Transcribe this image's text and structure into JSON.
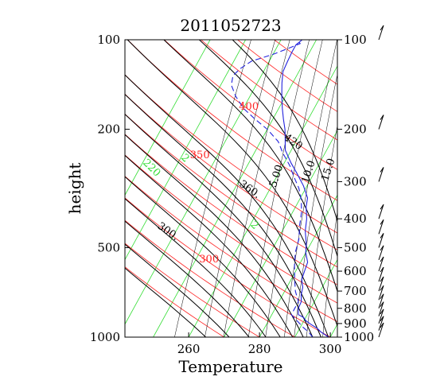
{
  "chart_data": {
    "type": "line",
    "title": "2011052723",
    "xlabel": "Temperature",
    "ylabel": "height",
    "xlim": [
      242,
      302
    ],
    "pressure_range": [
      1000,
      100
    ],
    "x_ticks": [
      260,
      280,
      300
    ],
    "y_ticks": [
      1000,
      500,
      200,
      100
    ],
    "right_ticks": [
      1000,
      900,
      800,
      700,
      600,
      500,
      400,
      300,
      200,
      100
    ],
    "isotherm_temps": [
      220,
      230,
      240,
      250,
      260,
      270,
      280,
      290,
      300,
      310,
      320,
      330,
      340,
      350
    ],
    "isotherm_labels": [
      {
        "text": "220",
        "temp": 220,
        "p": 260
      },
      {
        "text": "2",
        "temp": 230,
        "p": 250
      },
      {
        "text": "2",
        "temp": 260,
        "p": 420
      }
    ],
    "dry_adiabats": [
      270,
      280,
      290,
      300,
      310,
      320,
      330,
      340,
      350,
      360,
      380,
      400,
      420,
      440,
      460
    ],
    "dry_adiabat_labels": [
      {
        "text": "300",
        "theta": 300,
        "p": 560
      },
      {
        "text": "350",
        "theta": 350,
        "p": 250
      },
      {
        "text": "400",
        "theta": 400,
        "p": 172
      }
    ],
    "theta_e_curves": [
      270,
      280,
      290,
      300,
      310,
      320,
      330,
      340,
      350,
      360,
      380,
      400,
      420,
      440
    ],
    "theta_e_labels": [
      {
        "text": "300.",
        "theta_e": 300,
        "p": 450
      },
      {
        "text": "360.",
        "theta_e": 360,
        "p": 325
      },
      {
        "text": "420",
        "theta_e": 420,
        "p": 225
      }
    ],
    "mixing_ratio_lines": [
      1,
      2,
      3,
      5,
      7,
      10,
      12,
      15,
      20
    ],
    "mixing_ratio_labels": [
      {
        "text": "5.00",
        "w": 5,
        "p": 315
      },
      {
        "text": "10.0",
        "w": 10,
        "p": 305
      },
      {
        "text": "15.0",
        "w": 15,
        "p": 300
      }
    ],
    "series": [
      {
        "style": "solid",
        "color": "#2222dd",
        "points": [
          [
            299.5,
            1000
          ],
          [
            296.5,
            960
          ],
          [
            295,
            935
          ],
          [
            292.5,
            905
          ],
          [
            290.5,
            880
          ],
          [
            289.5,
            860
          ],
          [
            287.5,
            840
          ],
          [
            286.5,
            800
          ],
          [
            286.3,
            760
          ],
          [
            285.2,
            720
          ],
          [
            284.5,
            680
          ],
          [
            283,
            640
          ],
          [
            282.5,
            600
          ],
          [
            282,
            560
          ],
          [
            280,
            520
          ],
          [
            278.5,
            480
          ],
          [
            276.5,
            440
          ],
          [
            275,
            400
          ],
          [
            273,
            365
          ],
          [
            272,
            340
          ],
          [
            269,
            310
          ],
          [
            265,
            280
          ],
          [
            262,
            260
          ],
          [
            258.3,
            235
          ],
          [
            256.5,
            215
          ],
          [
            255,
            200
          ],
          [
            253,
            185
          ],
          [
            251,
            170
          ],
          [
            249,
            155
          ],
          [
            247,
            140
          ],
          [
            245.5,
            128
          ],
          [
            245.2,
            118
          ],
          [
            245,
            110
          ],
          [
            245,
            104
          ],
          [
            246,
            100
          ]
        ]
      },
      {
        "style": "dashed",
        "color": "#2222dd",
        "points": [
          [
            295,
            1000
          ],
          [
            293,
            960
          ],
          [
            291,
            930
          ],
          [
            288,
            880
          ],
          [
            285.5,
            840
          ],
          [
            285.5,
            800
          ],
          [
            285.5,
            760
          ],
          [
            283,
            700
          ],
          [
            281,
            640
          ],
          [
            279,
            580
          ],
          [
            277,
            520
          ],
          [
            276,
            470
          ],
          [
            274,
            420
          ],
          [
            272.5,
            380
          ],
          [
            270.5,
            345
          ],
          [
            268,
            315
          ],
          [
            265,
            290
          ],
          [
            262,
            265
          ],
          [
            258,
            240
          ],
          [
            255,
            220
          ],
          [
            250,
            200
          ],
          [
            245,
            185
          ],
          [
            240,
            170
          ],
          [
            236,
            155
          ],
          [
            233,
            142
          ],
          [
            232,
            132
          ],
          [
            233,
            125
          ],
          [
            235,
            118
          ],
          [
            240,
            112
          ],
          [
            244,
            106
          ],
          [
            246,
            103
          ],
          [
            244.5,
            100
          ]
        ]
      }
    ],
    "wind_barbs": [
      1000,
      950,
      900,
      850,
      800,
      750,
      700,
      650,
      600,
      550,
      500,
      450,
      400,
      300,
      200,
      100
    ],
    "colors": {
      "isotherm": "#33dd33",
      "dry_adiabat": "#ff2222",
      "theta_e": "#000000",
      "mixing_ratio": "#000000",
      "trace": "#2222dd"
    }
  }
}
